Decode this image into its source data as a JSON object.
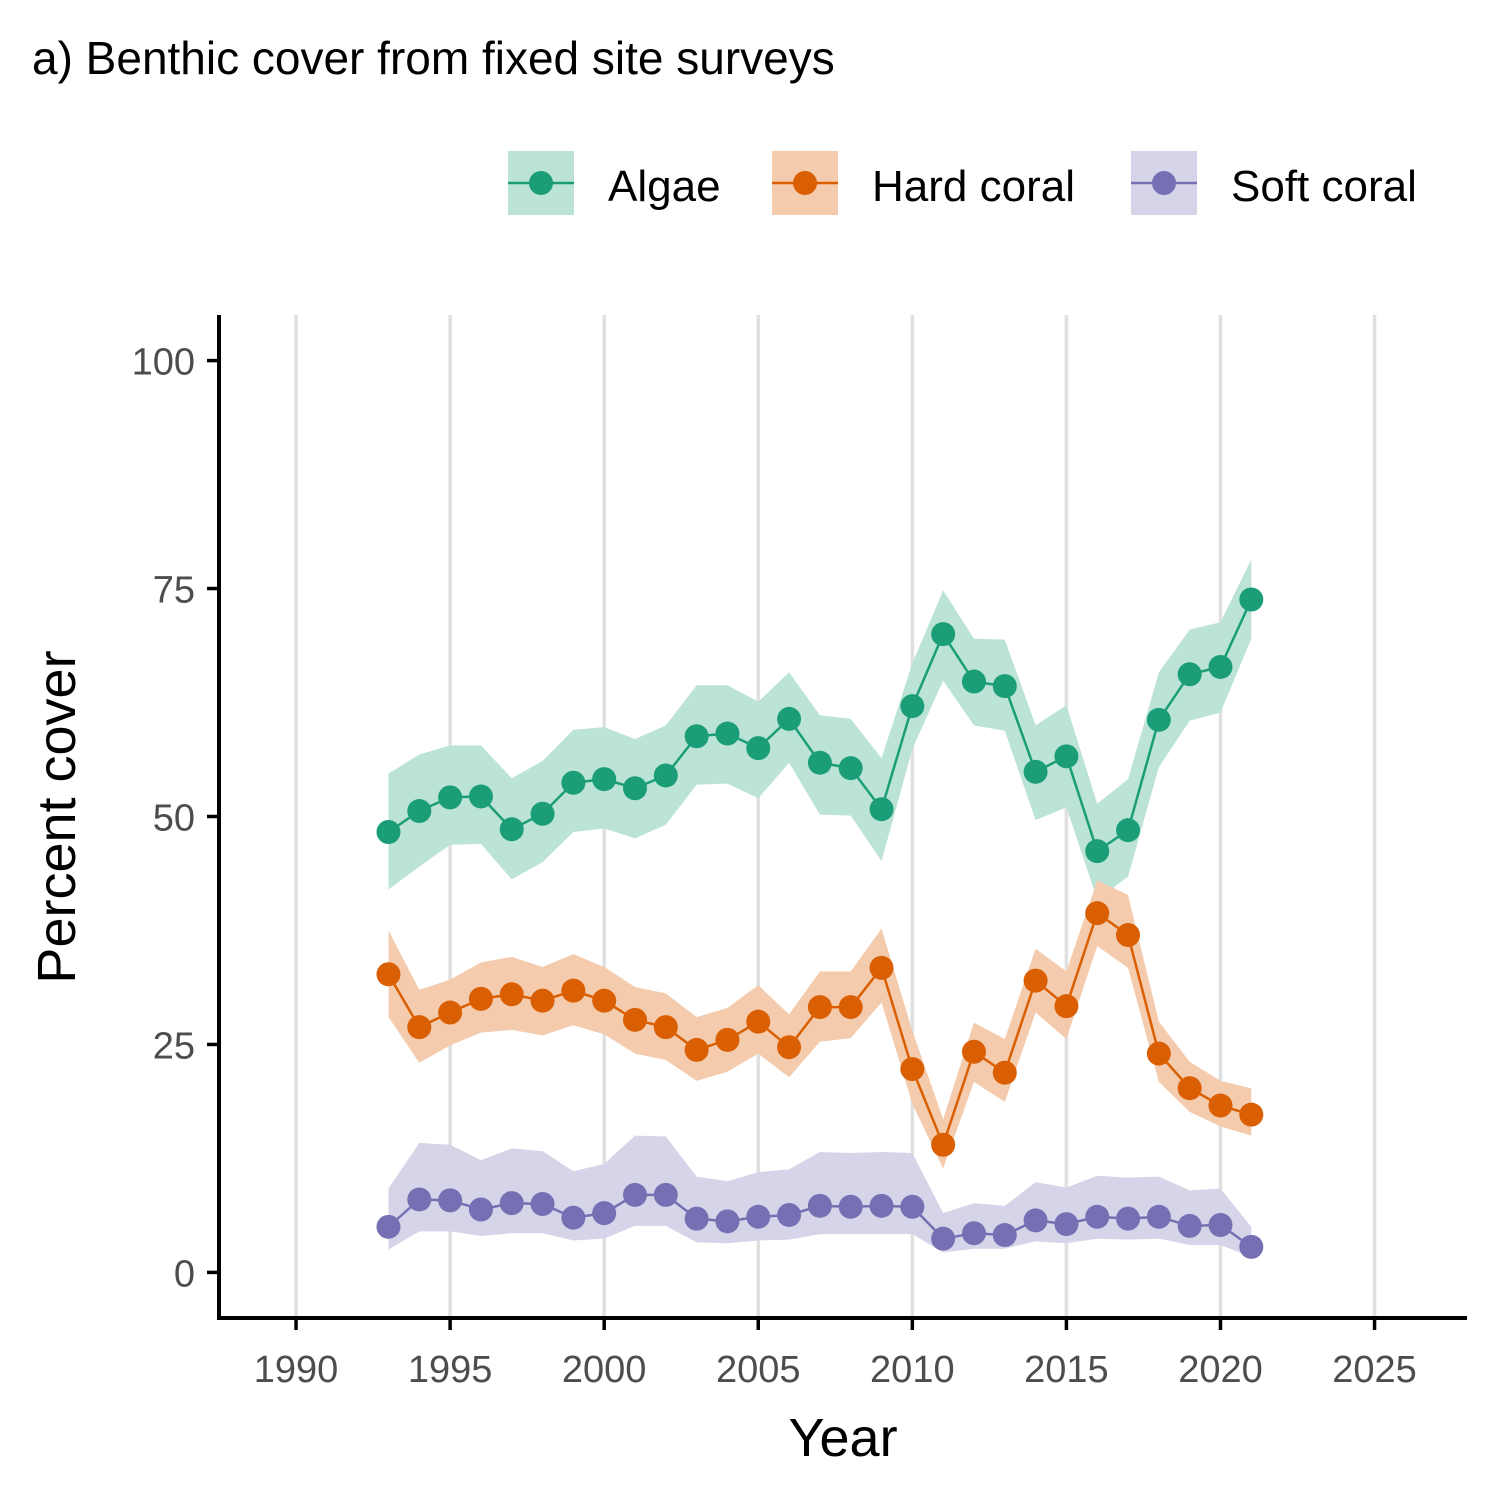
{
  "chart_data": {
    "type": "line",
    "title": "a) Benthic cover from fixed site surveys",
    "xlabel": "Year",
    "ylabel": "Percent cover",
    "xlim": [
      1987.5,
      2028.0
    ],
    "ylim": [
      -5,
      105
    ],
    "x_ticks": [
      1990,
      1995,
      2000,
      2005,
      2010,
      2015,
      2020,
      2025
    ],
    "y_ticks": [
      0,
      25,
      50,
      75,
      100
    ],
    "grid": "vertical major",
    "legend_position": "top",
    "x": [
      1993,
      1994,
      1995,
      1996,
      1997,
      1998,
      1999,
      2000,
      2001,
      2002,
      2003,
      2004,
      2005,
      2006,
      2007,
      2008,
      2009,
      2010,
      2011,
      2012,
      2013,
      2014,
      2015,
      2016,
      2017,
      2018,
      2019,
      2020,
      2021
    ],
    "series": [
      {
        "name": "Algae",
        "color": "#1b9e77",
        "ribbon_color": "#bbe3d6",
        "values": [
          48.3,
          50.6,
          52.1,
          52.2,
          48.6,
          50.3,
          53.7,
          54.1,
          53.1,
          54.5,
          58.8,
          59.1,
          57.5,
          60.7,
          55.9,
          55.3,
          50.8,
          62.1,
          70.0,
          64.8,
          64.3,
          54.9,
          56.6,
          46.2,
          48.5,
          60.6,
          65.6,
          66.4,
          73.8
        ],
        "lower": [
          42.0,
          44.5,
          46.9,
          47.0,
          43.1,
          45.0,
          48.3,
          48.7,
          47.6,
          49.1,
          53.5,
          53.6,
          52.0,
          55.9,
          50.2,
          50.1,
          45.1,
          57.4,
          64.9,
          60.0,
          59.4,
          49.6,
          51.0,
          40.9,
          43.4,
          55.4,
          60.5,
          61.4,
          69.5
        ],
        "upper": [
          54.7,
          56.8,
          57.8,
          57.8,
          54.2,
          56.1,
          59.5,
          59.8,
          58.5,
          60.0,
          64.4,
          64.4,
          62.6,
          65.8,
          61.1,
          60.7,
          56.4,
          66.8,
          74.8,
          69.5,
          69.4,
          60.0,
          62.2,
          51.4,
          54.1,
          65.8,
          70.5,
          71.3,
          78.2
        ]
      },
      {
        "name": "Hard coral",
        "color": "#d95f02",
        "ribbon_color": "#f4cbad",
        "values": [
          32.7,
          26.9,
          28.5,
          30.0,
          30.5,
          29.8,
          30.9,
          29.8,
          27.7,
          26.9,
          24.4,
          25.5,
          27.5,
          24.7,
          29.1,
          29.1,
          33.4,
          22.3,
          14.0,
          24.2,
          21.9,
          32.0,
          29.2,
          39.4,
          37.0,
          24.0,
          20.2,
          18.3,
          17.3
        ],
        "lower": [
          28.0,
          23.0,
          24.9,
          26.3,
          26.6,
          26.0,
          27.1,
          26.1,
          24.0,
          23.3,
          21.0,
          22.0,
          24.0,
          21.4,
          25.3,
          25.7,
          29.6,
          18.5,
          11.4,
          20.9,
          18.7,
          28.5,
          25.6,
          35.8,
          33.4,
          20.9,
          17.6,
          16.0,
          15.0
        ],
        "upper": [
          37.5,
          31.0,
          32.1,
          34.0,
          34.6,
          33.5,
          34.9,
          33.5,
          31.3,
          30.6,
          28.0,
          29.0,
          31.5,
          28.3,
          33.0,
          33.0,
          37.7,
          26.5,
          16.8,
          27.4,
          25.6,
          35.5,
          33.0,
          43.0,
          41.4,
          27.5,
          23.1,
          21.0,
          20.2
        ]
      },
      {
        "name": "Soft coral",
        "color": "#7570b3",
        "ribbon_color": "#d6d4e8",
        "values": [
          5.0,
          8.0,
          7.9,
          6.9,
          7.6,
          7.5,
          6.0,
          6.5,
          8.5,
          8.5,
          5.9,
          5.6,
          6.1,
          6.3,
          7.3,
          7.2,
          7.3,
          7.2,
          3.7,
          4.3,
          4.1,
          5.7,
          5.3,
          6.1,
          5.9,
          6.1,
          5.1,
          5.2,
          2.8
        ],
        "lower": [
          2.5,
          4.5,
          4.5,
          4.0,
          4.3,
          4.3,
          3.5,
          3.7,
          5.1,
          5.1,
          3.3,
          3.2,
          3.5,
          3.6,
          4.2,
          4.2,
          4.2,
          4.2,
          2.2,
          2.6,
          2.6,
          3.4,
          3.2,
          3.7,
          3.6,
          3.7,
          3.0,
          3.0,
          1.7
        ],
        "upper": [
          9.2,
          14.2,
          14.0,
          12.3,
          13.6,
          13.3,
          11.1,
          11.9,
          15.0,
          14.9,
          10.5,
          10.0,
          11.0,
          11.3,
          13.2,
          13.1,
          13.2,
          13.1,
          6.5,
          7.6,
          7.3,
          9.9,
          9.3,
          10.6,
          10.4,
          10.5,
          9.0,
          9.2,
          5.0
        ]
      }
    ]
  }
}
